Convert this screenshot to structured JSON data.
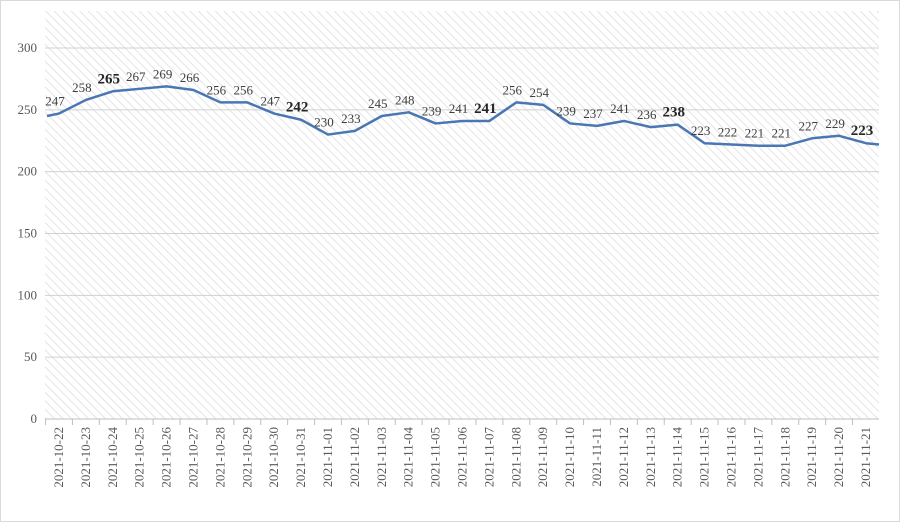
{
  "chart_data": {
    "type": "line",
    "title": "",
    "xlabel": "",
    "ylabel": "",
    "ylim": [
      0,
      300
    ],
    "yticks": [
      0,
      50,
      100,
      150,
      200,
      250,
      300
    ],
    "grid": true,
    "legend": "none",
    "series_color": "#4a77b4",
    "categories": [
      "2021-10-22",
      "2021-10-23",
      "2021-10-24",
      "2021-10-25",
      "2021-10-26",
      "2021-10-27",
      "2021-10-28",
      "2021-10-29",
      "2021-10-30",
      "2021-10-31",
      "2021-11-01",
      "2021-11-02",
      "2021-11-03",
      "2021-11-04",
      "2021-11-05",
      "2021-11-06",
      "2021-11-07",
      "2021-11-08",
      "2021-11-09",
      "2021-11-10",
      "2021-11-11",
      "2021-11-12",
      "2021-11-13",
      "2021-11-14",
      "2021-11-15",
      "2021-11-16",
      "2021-11-17",
      "2021-11-18",
      "2021-11-19",
      "2021-11-20",
      "2021-11-21"
    ],
    "leading_value": 245,
    "trailing_value": 222,
    "values": [
      247,
      258,
      265,
      267,
      269,
      266,
      256,
      256,
      247,
      242,
      230,
      233,
      245,
      248,
      239,
      241,
      241,
      256,
      254,
      239,
      237,
      241,
      236,
      238,
      223,
      222,
      221,
      221,
      227,
      229,
      223
    ],
    "bold_labels": [
      "2021-10-24",
      "2021-10-31",
      "2021-11-07",
      "2021-11-14",
      "2021-11-21"
    ]
  }
}
